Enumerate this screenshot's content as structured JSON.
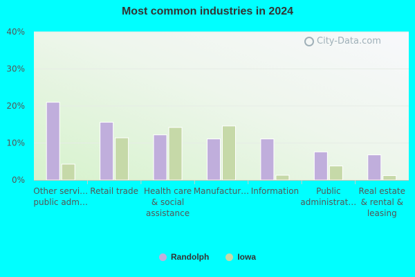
{
  "chart_data": {
    "type": "bar",
    "title": "Most common industries in 2024",
    "categories": [
      [
        "Other servi…",
        "public adm…"
      ],
      [
        "Retail trade"
      ],
      [
        "Health care",
        "& social",
        "assistance"
      ],
      [
        "Manufactur…"
      ],
      [
        "Information"
      ],
      [
        "Public",
        "administrat…"
      ],
      [
        "Real estate",
        "& rental &",
        "leasing"
      ]
    ],
    "series": [
      {
        "name": "Randolph",
        "color": "#c0aedc",
        "values": [
          21.0,
          15.6,
          12.2,
          11.1,
          11.1,
          7.6,
          6.8
        ]
      },
      {
        "name": "Iowa",
        "color": "#c6d9a8",
        "values": [
          4.3,
          11.4,
          14.2,
          14.6,
          1.3,
          3.8,
          1.2
        ]
      }
    ],
    "ylim": [
      0,
      40
    ],
    "yticks": [
      0,
      10,
      20,
      30,
      40
    ],
    "ytick_labels": [
      "0%",
      "10%",
      "20%",
      "30%",
      "40%"
    ],
    "grid": true,
    "legend_position": "bottom"
  },
  "watermark": "City-Data.com"
}
